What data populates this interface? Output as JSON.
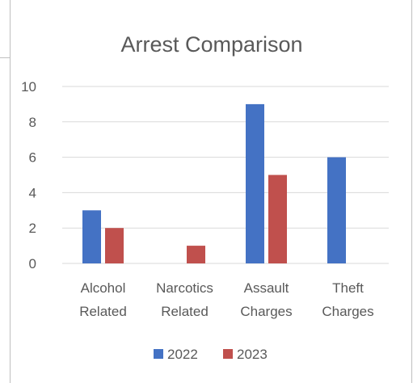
{
  "chart_data": {
    "type": "bar",
    "title": "Arrest Comparison",
    "categories": [
      [
        "Alcohol",
        "Related"
      ],
      [
        "Narcotics",
        "Related"
      ],
      [
        "Assault",
        "Charges"
      ],
      [
        "Theft",
        "Charges"
      ]
    ],
    "series": [
      {
        "name": "2022",
        "color": "#4472c4",
        "values": [
          3,
          0,
          9,
          6
        ]
      },
      {
        "name": "2023",
        "color": "#c0504d",
        "values": [
          2,
          1,
          5,
          0
        ]
      }
    ],
    "ylim": [
      0,
      10
    ],
    "yticks": [
      0,
      2,
      4,
      6,
      8,
      10
    ],
    "grid": true,
    "legend_position": "bottom"
  }
}
